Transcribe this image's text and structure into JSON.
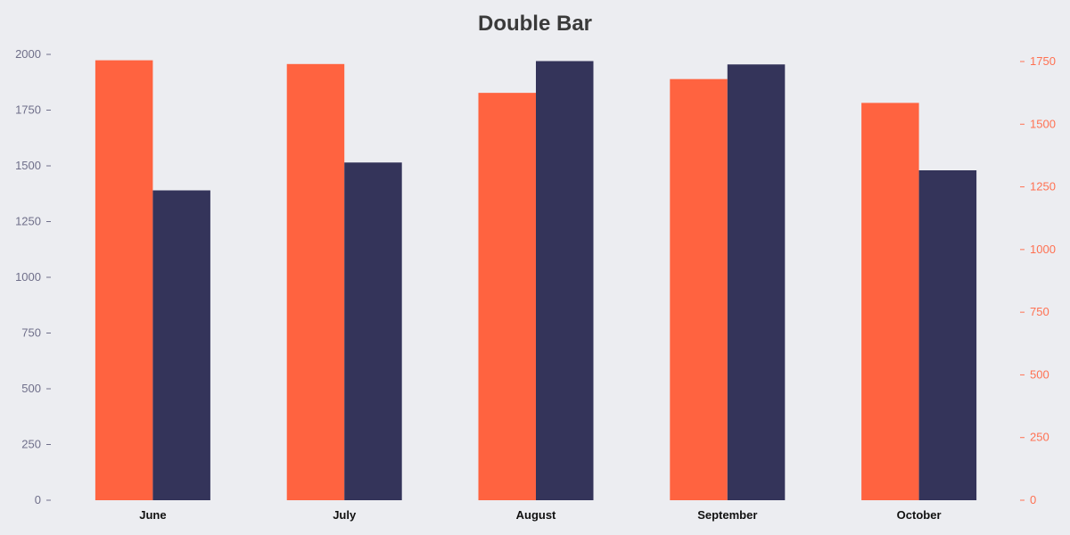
{
  "chart_data": {
    "type": "bar",
    "title": "Double Bar",
    "categories": [
      "June",
      "July",
      "August",
      "September",
      "October"
    ],
    "series": [
      {
        "axis": "right",
        "color": "#ff6340",
        "values": [
          1755,
          1740,
          1625,
          1680,
          1585
        ]
      },
      {
        "axis": "left",
        "color": "#34345a",
        "values": [
          1390,
          1515,
          1970,
          1955,
          1480
        ]
      }
    ],
    "y_left": {
      "range": [
        0,
        2000
      ],
      "ticks": [
        "0",
        "250",
        "500",
        "750",
        "1000",
        "1250",
        "1500",
        "1750",
        "2000"
      ]
    },
    "y_right": {
      "range": [
        0,
        1780
      ],
      "ticks": [
        "0",
        "250",
        "500",
        "750",
        "1000",
        "1250",
        "1500",
        "1750"
      ]
    },
    "grid": false,
    "legend": "none"
  }
}
